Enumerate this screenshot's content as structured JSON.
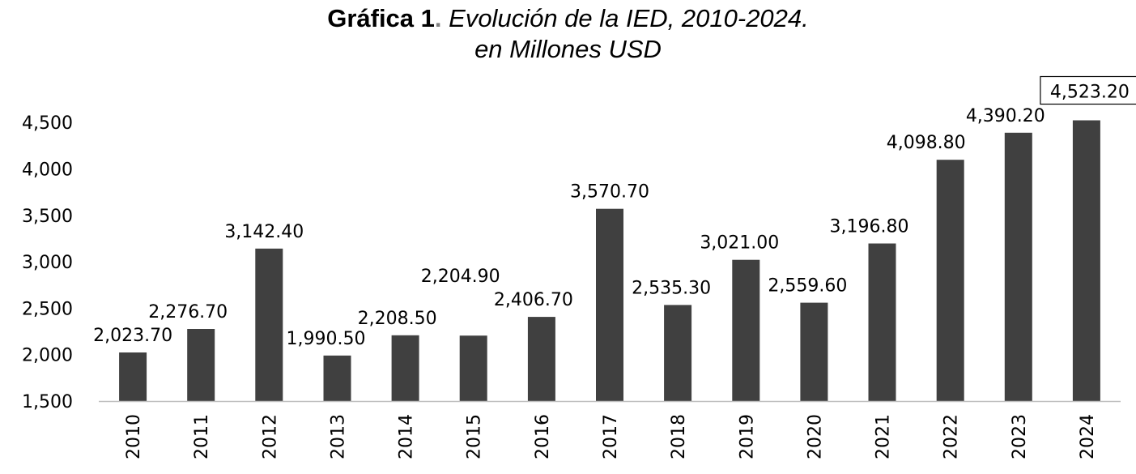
{
  "title": {
    "prefix": "Gráfica 1",
    "separator": ".",
    "main": " Evolución de la IED, 2010-2024.",
    "subtitle": "en Millones USD"
  },
  "chart_data": {
    "type": "bar",
    "title": "Gráfica 1. Evolución de la IED, 2010-2024. en Millones USD",
    "xlabel": "",
    "ylabel": "",
    "ylim": [
      1500,
      4750
    ],
    "yticks": [
      1500,
      2000,
      2500,
      3000,
      3500,
      4000,
      4500
    ],
    "ytick_labels": [
      "1,500",
      "2,000",
      "2,500",
      "3,000",
      "3,500",
      "4,000",
      "4,500"
    ],
    "categories": [
      "2010",
      "2011",
      "2012",
      "2013",
      "2014",
      "2015",
      "2016",
      "2017",
      "2018",
      "2019",
      "2020",
      "2021",
      "2022",
      "2023",
      "2024"
    ],
    "values": [
      2023.7,
      2276.7,
      3142.4,
      1990.5,
      2208.5,
      2204.9,
      2406.7,
      3570.7,
      2535.3,
      3021.0,
      2559.6,
      3196.8,
      4098.8,
      4390.2,
      4523.2
    ],
    "data_labels": [
      "2,023.70",
      "2,276.70",
      "3,142.40",
      "1,990.50",
      "2,208.50",
      "2,204.90",
      "2,406.70",
      "3,570.70",
      "2,535.30",
      "3,021.00",
      "2,559.60",
      "3,196.80",
      "4,098.80",
      "4,390.20",
      "4,523.20"
    ],
    "bar_color": "#404040",
    "grid": false,
    "legend": "none",
    "highlighted_label": "2024"
  }
}
